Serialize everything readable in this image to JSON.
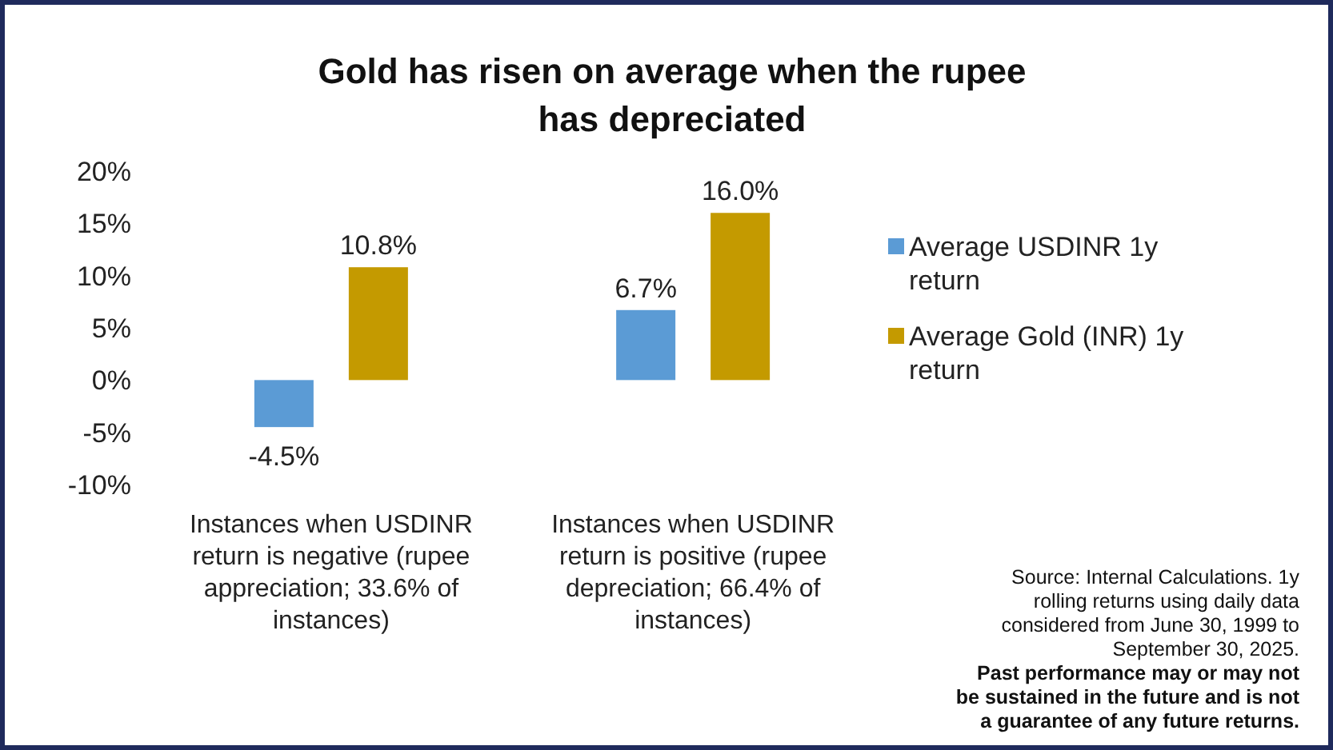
{
  "chart_data": {
    "type": "bar",
    "title": "Gold has risen on average when the rupee has depreciated",
    "categories": [
      "Instances when USDINR return is negative (rupee appreciation; 33.6% of instances)",
      "Instances when USDINR return is positive (rupee depreciation; 66.4% of instances)"
    ],
    "series": [
      {
        "name": "Average USDINR 1y return",
        "color": "#5b9bd5",
        "values": [
          -4.5,
          6.7
        ]
      },
      {
        "name": "Average Gold (INR) 1y return",
        "color": "#c49a00",
        "values": [
          10.8,
          16.0
        ]
      }
    ],
    "value_labels": [
      [
        "-4.5%",
        "6.7%"
      ],
      [
        "10.8%",
        "16.0%"
      ]
    ],
    "ylim": [
      -10,
      20
    ],
    "yticks": [
      {
        "value": -10,
        "label": "-10%"
      },
      {
        "value": -5,
        "label": "-5%"
      },
      {
        "value": 0,
        "label": "0%"
      },
      {
        "value": 5,
        "label": "5%"
      },
      {
        "value": 10,
        "label": "10%"
      },
      {
        "value": 15,
        "label": "15%"
      },
      {
        "value": 20,
        "label": "20%"
      }
    ],
    "legend": "right",
    "annotations": [
      "Source: Internal Calculations. 1y rolling returns using daily data considered from June 30, 1999 to September 30, 2025.",
      "Past performance may or may not be sustained in the future and is not a guarantee of any future returns."
    ]
  }
}
